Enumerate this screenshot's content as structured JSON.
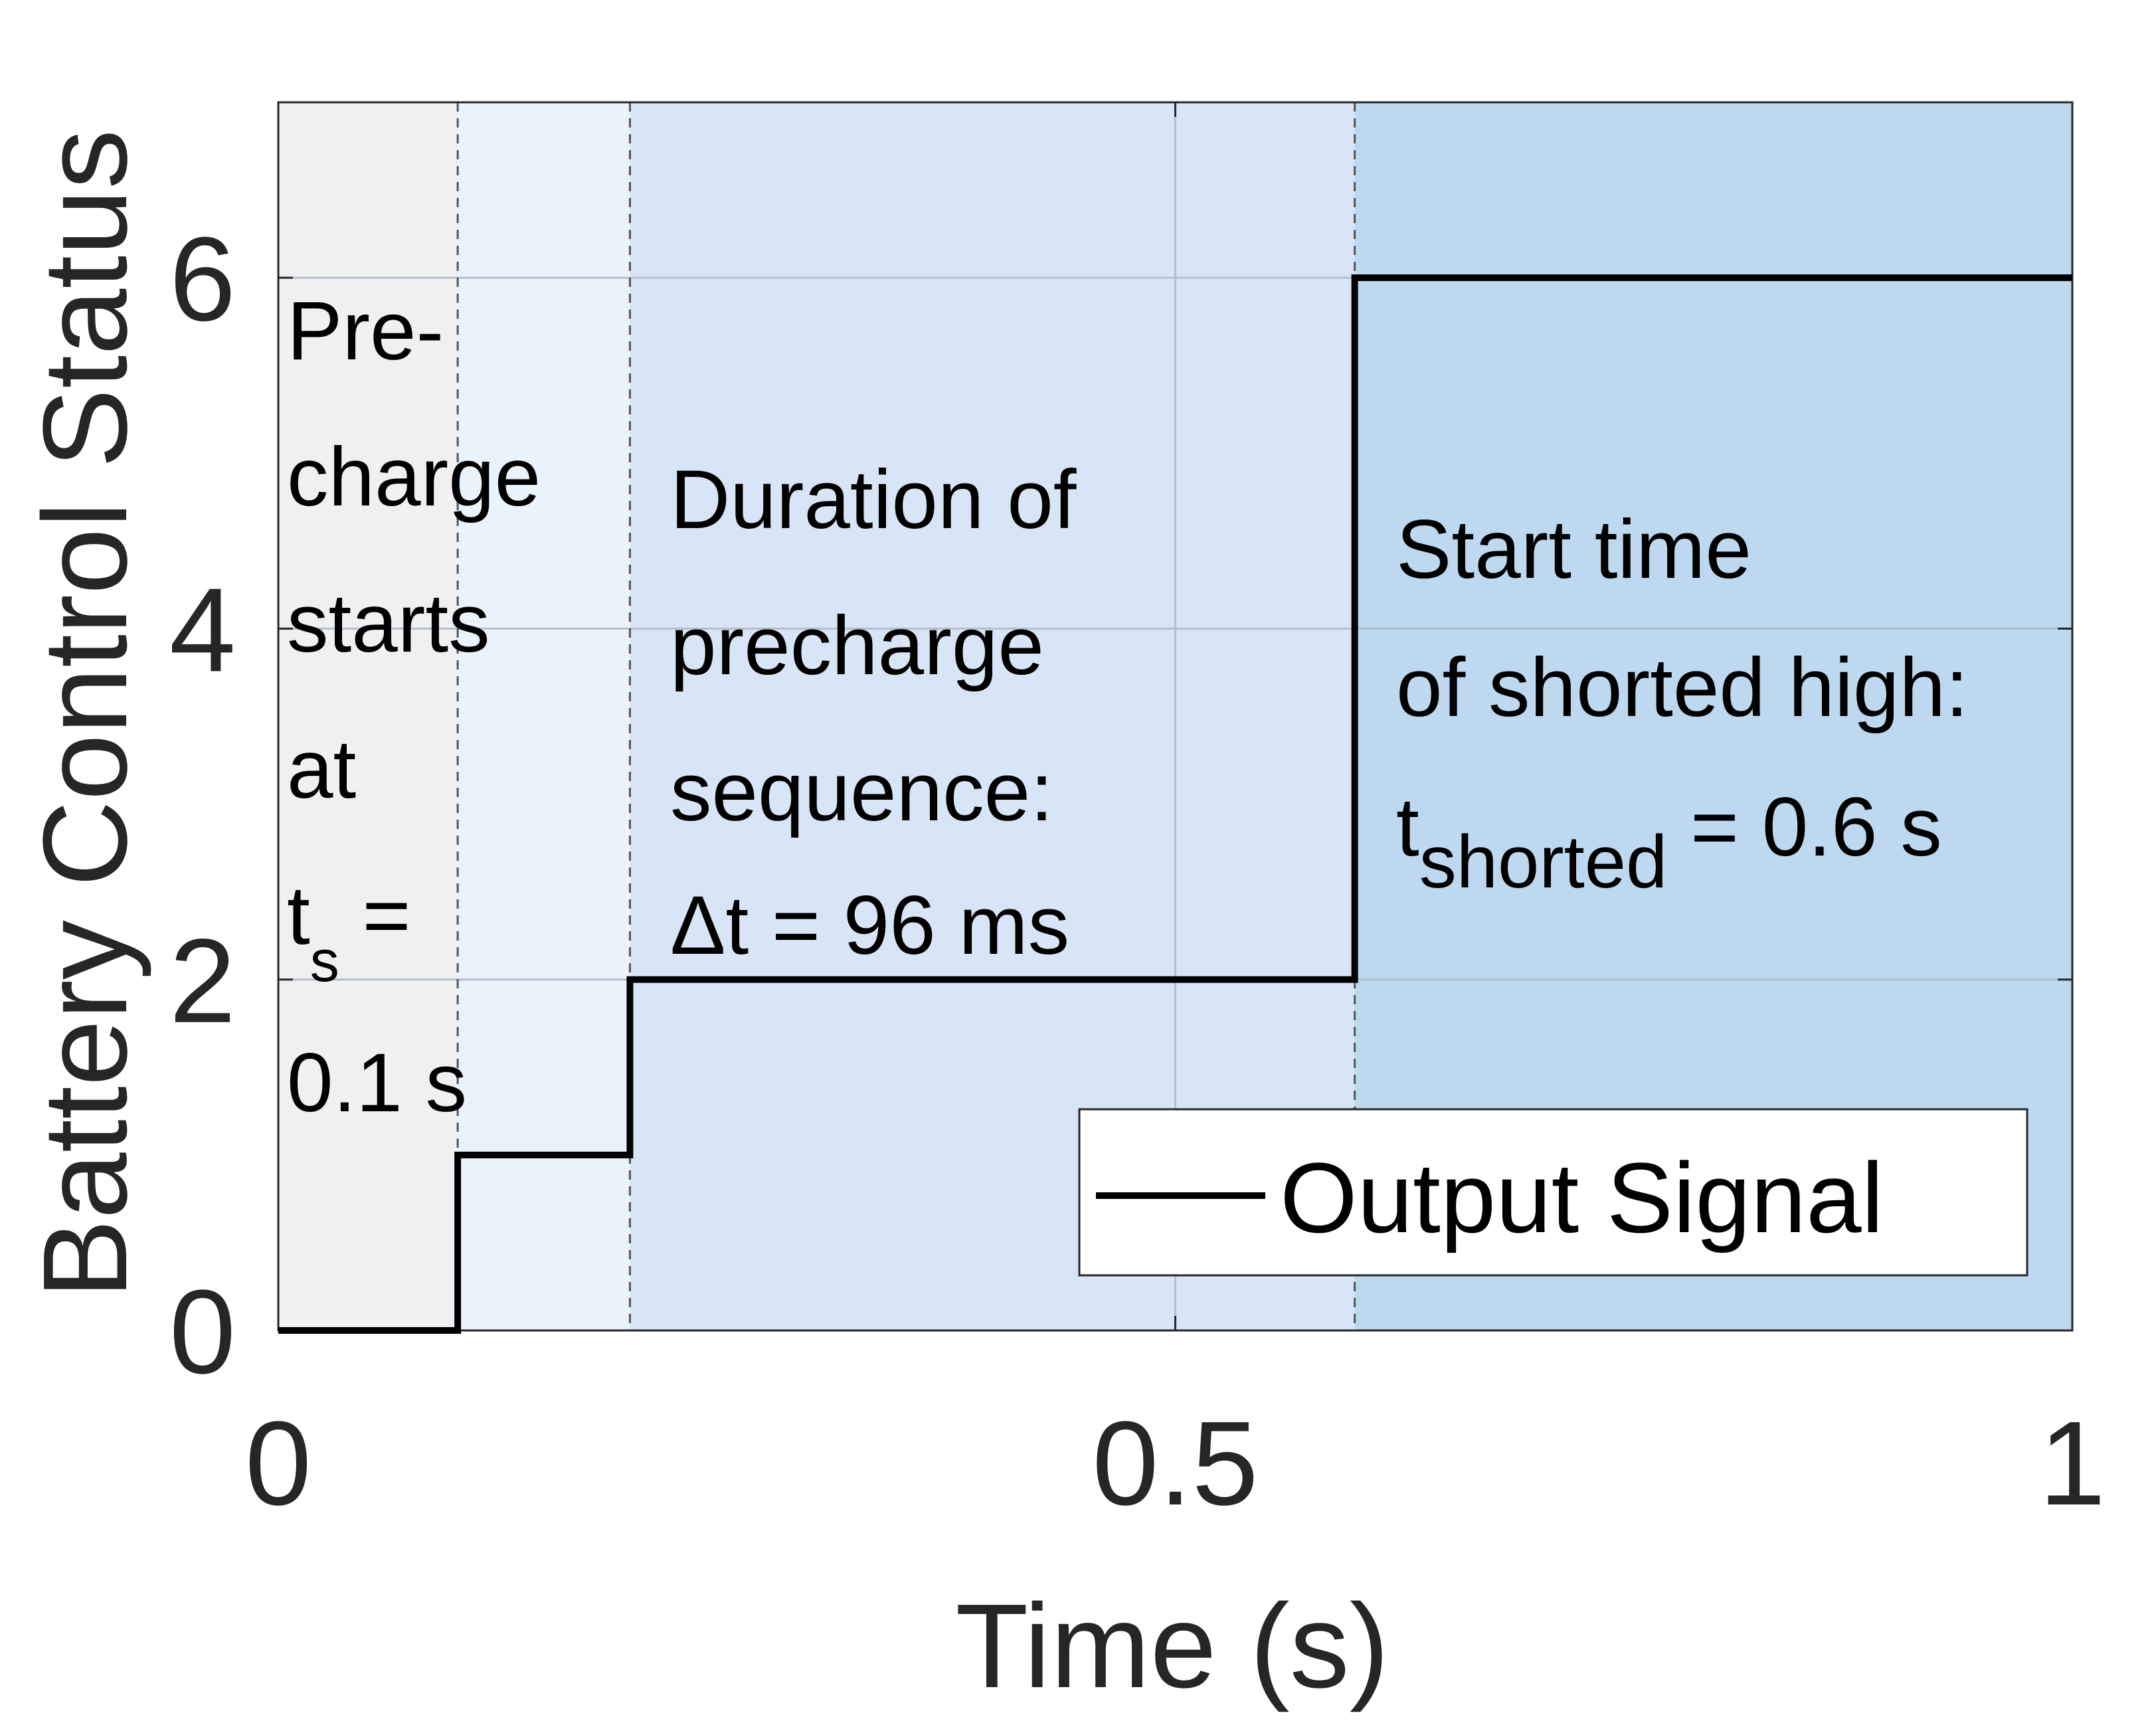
{
  "chart_data": {
    "type": "line",
    "step": true,
    "xlabel": "Time (s)",
    "ylabel": "Battery Control Status",
    "xlim": [
      0,
      1
    ],
    "ylim": [
      0,
      7
    ],
    "x_ticks": [
      0,
      0.5,
      1
    ],
    "x_tick_labels": [
      "0",
      "0.5",
      "1"
    ],
    "y_ticks": [
      0,
      2,
      4,
      6
    ],
    "y_tick_labels": [
      "0",
      "2",
      "4",
      "6"
    ],
    "grid": true,
    "legend": {
      "position": "bottom-right",
      "entries": [
        "Output Signal"
      ]
    },
    "series": [
      {
        "name": "Output Signal",
        "color": "#000000",
        "x": [
          0,
          0.1,
          0.1,
          0.196,
          0.196,
          0.6,
          0.6,
          1.0
        ],
        "y": [
          0,
          0,
          1,
          1,
          2,
          2,
          6,
          6
        ]
      }
    ],
    "regions": [
      {
        "x": [
          0,
          0.1
        ],
        "color": "#f0f0f2"
      },
      {
        "x": [
          0.1,
          0.196
        ],
        "color": "#eaf2fc"
      },
      {
        "x": [
          0.196,
          0.6
        ],
        "color": "#d7e5f6"
      },
      {
        "x": [
          0.6,
          1.0
        ],
        "color": "#bed8ef"
      }
    ],
    "markers_x": [
      0.1,
      0.196,
      0.6
    ],
    "annotations": {
      "precharge": {
        "lines": [
          "Pre-",
          "charge",
          "starts",
          "at"
        ],
        "t_main": "t",
        "t_sub": "s",
        "t_rest": " =",
        "value": "0.1 s"
      },
      "duration": {
        "lines": [
          "Duration of",
          "precharge",
          "sequence:",
          "Δt = 96 ms"
        ]
      },
      "shorted": {
        "lines": [
          "Start time",
          "of shorted high:"
        ],
        "t_main": "t",
        "t_sub": "shorted",
        "t_rest": " = 0.6 s"
      }
    }
  }
}
